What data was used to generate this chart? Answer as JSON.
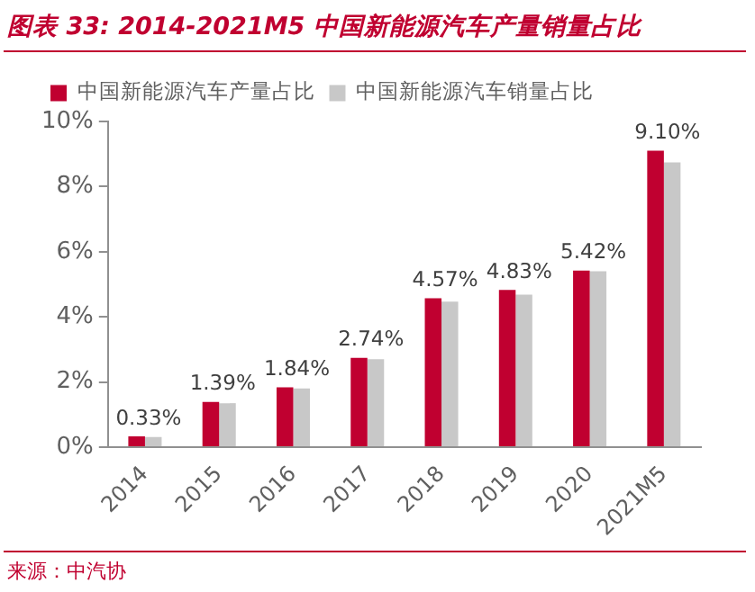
{
  "chart_data": {
    "type": "bar",
    "title": "图表 33: 2014-2021M5 中国新能源汽车产量销量占比",
    "categories": [
      "2014",
      "2015",
      "2016",
      "2017",
      "2018",
      "2019",
      "2020",
      "2021M5"
    ],
    "series": [
      {
        "name": "中国新能源汽车产量占比",
        "color": "#c00030",
        "values": [
          0.33,
          1.39,
          1.84,
          2.74,
          4.57,
          4.83,
          5.42,
          9.1
        ],
        "value_labels": [
          "0.33%",
          "1.39%",
          "1.84%",
          "2.74%",
          "4.57%",
          "4.83%",
          "5.42%",
          "9.10%"
        ]
      },
      {
        "name": "中国新能源汽车销量占比",
        "color": "#c8c8c8",
        "values": [
          0.31,
          1.35,
          1.8,
          2.7,
          4.47,
          4.68,
          5.4,
          8.74
        ]
      }
    ],
    "ylim": [
      0,
      10
    ],
    "yticks": [
      {
        "value": 0,
        "label": "0%"
      },
      {
        "value": 2,
        "label": "2%"
      },
      {
        "value": 4,
        "label": "4%"
      },
      {
        "value": 6,
        "label": "6%"
      },
      {
        "value": 8,
        "label": "8%"
      },
      {
        "value": 10,
        "label": "10%"
      }
    ],
    "grid": false,
    "legend": "top left",
    "annotations": [
      "来源：中汽协"
    ]
  }
}
